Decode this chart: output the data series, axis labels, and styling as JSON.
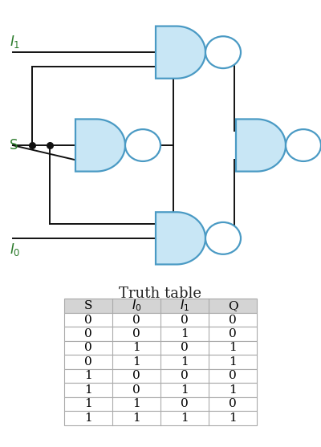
{
  "title": "Truth table",
  "columns": [
    "S",
    "I₀",
    "I₁",
    "Q"
  ],
  "rows": [
    [
      0,
      0,
      0,
      0
    ],
    [
      0,
      0,
      1,
      0
    ],
    [
      0,
      1,
      0,
      1
    ],
    [
      0,
      1,
      1,
      1
    ],
    [
      1,
      0,
      0,
      0
    ],
    [
      1,
      0,
      1,
      1
    ],
    [
      1,
      1,
      0,
      0
    ],
    [
      1,
      1,
      1,
      1
    ]
  ],
  "gate_fill": "#c8e6f5",
  "gate_edge": "#4a9ac4",
  "line_color": "#111111",
  "label_color_green": "#2a7a2a",
  "label_color_black": "#222222",
  "bg_color": "#ffffff",
  "table_header_bg": "#d4d4d4",
  "table_row_bg": "#ffffff",
  "table_border": "#aaaaaa",
  "bubble_fill": "#ffffff",
  "bubble_r": 0.055,
  "lw": 1.4,
  "gate_lw": 1.6
}
